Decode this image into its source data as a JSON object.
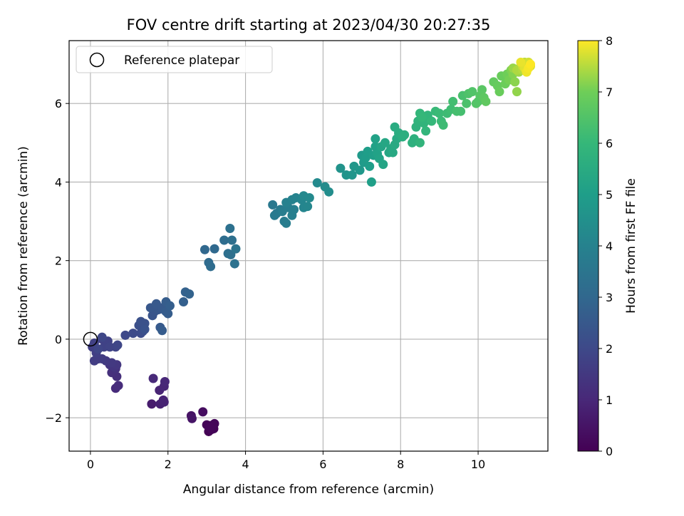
{
  "chart_data": {
    "type": "scatter",
    "title": "FOV centre drift starting at 2023/04/30 20:27:35",
    "xlabel": "Angular distance from reference (arcmin)",
    "ylabel": "Rotation from reference (arcmin)",
    "xlim": [
      -0.55,
      11.8
    ],
    "ylim": [
      -2.85,
      7.6
    ],
    "x_ticks": [
      0,
      2,
      4,
      6,
      8,
      10
    ],
    "y_ticks": [
      -2,
      0,
      2,
      4,
      6
    ],
    "x_tick_labels": [
      "0",
      "2",
      "4",
      "6",
      "8",
      "10"
    ],
    "y_tick_labels": [
      "−2",
      "0",
      "2",
      "4",
      "6"
    ],
    "grid": true,
    "legend": {
      "placement": "top-left",
      "label": "Reference platepar"
    },
    "reference_point": {
      "x": 0,
      "y": 0
    },
    "colorbar": {
      "label": "Hours from first FF file",
      "min": 0,
      "max": 8,
      "ticks": [
        0,
        1,
        2,
        3,
        4,
        5,
        6,
        7,
        8
      ],
      "tick_labels": [
        "0",
        "1",
        "2",
        "3",
        "4",
        "5",
        "6",
        "7",
        "8"
      ],
      "colormap": "viridis"
    },
    "points": [
      [
        3.05,
        -2.35,
        0.0
      ],
      [
        3.1,
        -2.2,
        0.03
      ],
      [
        3.18,
        -2.28,
        0.06
      ],
      [
        3.0,
        -2.18,
        0.08
      ],
      [
        3.12,
        -2.3,
        0.1
      ],
      [
        3.2,
        -2.15,
        0.12
      ],
      [
        3.08,
        -2.25,
        0.14
      ],
      [
        2.9,
        -1.85,
        0.3
      ],
      [
        2.6,
        -1.95,
        0.45
      ],
      [
        2.62,
        -2.02,
        0.5
      ],
      [
        1.58,
        -1.65,
        0.7
      ],
      [
        1.8,
        -1.65,
        0.8
      ],
      [
        1.88,
        -1.55,
        0.85
      ],
      [
        1.9,
        -1.6,
        0.87
      ],
      [
        1.78,
        -1.3,
        0.9
      ],
      [
        1.9,
        -1.2,
        0.95
      ],
      [
        1.92,
        -1.08,
        1.0
      ],
      [
        1.62,
        -1.0,
        1.05
      ],
      [
        0.65,
        -1.25,
        1.1
      ],
      [
        0.72,
        -1.18,
        1.15
      ],
      [
        0.68,
        -0.95,
        1.2
      ],
      [
        0.55,
        -0.85,
        1.25
      ],
      [
        0.65,
        -0.75,
        1.3
      ],
      [
        0.5,
        -0.65,
        1.35
      ],
      [
        0.6,
        -0.7,
        1.4
      ],
      [
        0.68,
        -0.65,
        1.45
      ],
      [
        0.55,
        -0.6,
        1.5
      ],
      [
        0.4,
        -0.55,
        1.55
      ],
      [
        0.3,
        -0.5,
        1.6
      ],
      [
        0.1,
        -0.55,
        1.65
      ],
      [
        0.2,
        -0.5,
        1.65
      ],
      [
        0.15,
        -0.35,
        1.7
      ],
      [
        0.05,
        -0.2,
        1.7
      ],
      [
        0.1,
        -0.1,
        1.75
      ],
      [
        0.3,
        0.0,
        1.75
      ],
      [
        0.45,
        -0.05,
        1.8
      ],
      [
        0.35,
        -0.2,
        1.8
      ],
      [
        0.5,
        -0.2,
        1.85
      ],
      [
        0.65,
        -0.2,
        1.85
      ],
      [
        0.7,
        -0.15,
        1.9
      ],
      [
        0.2,
        -0.25,
        1.9
      ],
      [
        0.3,
        0.05,
        1.95
      ],
      [
        0.9,
        0.1,
        2.0
      ],
      [
        1.1,
        0.15,
        2.05
      ],
      [
        1.3,
        0.15,
        2.1
      ],
      [
        1.35,
        0.2,
        2.15
      ],
      [
        1.25,
        0.35,
        2.2
      ],
      [
        1.3,
        0.45,
        2.25
      ],
      [
        1.4,
        0.4,
        2.25
      ],
      [
        1.4,
        0.25,
        2.3
      ],
      [
        1.6,
        0.6,
        2.35
      ],
      [
        1.65,
        0.7,
        2.4
      ],
      [
        1.75,
        0.75,
        2.45
      ],
      [
        1.55,
        0.8,
        2.45
      ],
      [
        1.7,
        0.9,
        2.5
      ],
      [
        1.85,
        0.8,
        2.5
      ],
      [
        1.9,
        0.75,
        2.55
      ],
      [
        1.8,
        0.3,
        2.55
      ],
      [
        1.85,
        0.22,
        2.6
      ],
      [
        1.95,
        0.7,
        2.6
      ],
      [
        2.0,
        0.65,
        2.65
      ],
      [
        1.95,
        0.95,
        2.65
      ],
      [
        2.05,
        0.85,
        2.7
      ],
      [
        2.4,
        0.95,
        2.75
      ],
      [
        2.45,
        1.2,
        2.8
      ],
      [
        2.55,
        1.15,
        2.85
      ],
      [
        2.95,
        2.28,
        3.0
      ],
      [
        3.2,
        2.3,
        3.05
      ],
      [
        3.05,
        1.95,
        3.1
      ],
      [
        3.1,
        1.85,
        3.15
      ],
      [
        3.45,
        2.52,
        3.2
      ],
      [
        3.55,
        2.18,
        3.25
      ],
      [
        3.62,
        2.15,
        3.3
      ],
      [
        3.65,
        2.52,
        3.3
      ],
      [
        3.6,
        2.82,
        3.35
      ],
      [
        3.72,
        1.92,
        3.4
      ],
      [
        3.75,
        2.3,
        3.45
      ],
      [
        4.7,
        3.42,
        3.6
      ],
      [
        4.8,
        3.2,
        3.65
      ],
      [
        4.75,
        3.15,
        3.7
      ],
      [
        4.9,
        3.3,
        3.7
      ],
      [
        5.0,
        3.0,
        3.75
      ],
      [
        5.05,
        2.95,
        3.8
      ],
      [
        4.95,
        3.25,
        3.8
      ],
      [
        5.1,
        3.35,
        3.85
      ],
      [
        5.2,
        3.15,
        3.9
      ],
      [
        5.25,
        3.3,
        3.9
      ],
      [
        5.05,
        3.48,
        3.95
      ],
      [
        5.2,
        3.55,
        4.0
      ],
      [
        5.3,
        3.6,
        4.05
      ],
      [
        5.45,
        3.55,
        4.1
      ],
      [
        5.5,
        3.35,
        4.1
      ],
      [
        5.6,
        3.38,
        4.15
      ],
      [
        5.5,
        3.65,
        4.2
      ],
      [
        5.65,
        3.6,
        4.25
      ],
      [
        5.85,
        3.98,
        4.3
      ],
      [
        6.05,
        3.88,
        4.35
      ],
      [
        6.15,
        3.75,
        4.4
      ],
      [
        6.45,
        4.35,
        4.6
      ],
      [
        6.6,
        4.18,
        4.65
      ],
      [
        6.75,
        4.18,
        4.7
      ],
      [
        6.8,
        4.4,
        4.75
      ],
      [
        6.95,
        4.3,
        4.8
      ],
      [
        7.0,
        4.68,
        4.85
      ],
      [
        7.05,
        4.5,
        4.9
      ],
      [
        7.1,
        4.62,
        4.95
      ],
      [
        7.15,
        4.78,
        5.0
      ],
      [
        7.2,
        4.4,
        5.0
      ],
      [
        7.25,
        4.0,
        5.05
      ],
      [
        7.3,
        4.68,
        5.05
      ],
      [
        7.35,
        4.9,
        5.1
      ],
      [
        7.4,
        4.72,
        5.15
      ],
      [
        7.35,
        5.1,
        5.15
      ],
      [
        7.45,
        4.6,
        5.2
      ],
      [
        7.5,
        4.9,
        5.25
      ],
      [
        7.55,
        4.45,
        5.25
      ],
      [
        7.6,
        5.0,
        5.3
      ],
      [
        7.7,
        4.75,
        5.3
      ],
      [
        7.75,
        4.85,
        5.35
      ],
      [
        7.8,
        4.75,
        5.4
      ],
      [
        7.85,
        4.95,
        5.45
      ],
      [
        7.9,
        5.1,
        5.45
      ],
      [
        7.85,
        5.4,
        5.5
      ],
      [
        7.95,
        5.25,
        5.55
      ],
      [
        8.05,
        5.15,
        5.6
      ],
      [
        8.1,
        5.2,
        5.65
      ],
      [
        8.3,
        5.0,
        5.7
      ],
      [
        8.35,
        5.1,
        5.7
      ],
      [
        8.4,
        5.4,
        5.75
      ],
      [
        8.45,
        5.55,
        5.8
      ],
      [
        8.5,
        5.0,
        5.85
      ],
      [
        8.6,
        5.5,
        5.85
      ],
      [
        8.65,
        5.3,
        5.9
      ],
      [
        8.7,
        5.7,
        5.9
      ],
      [
        8.5,
        5.75,
        5.95
      ],
      [
        8.55,
        5.65,
        6.0
      ],
      [
        8.8,
        5.55,
        6.0
      ],
      [
        8.9,
        5.8,
        6.05
      ],
      [
        9.0,
        5.75,
        6.1
      ],
      [
        9.05,
        5.55,
        6.1
      ],
      [
        9.1,
        5.45,
        6.15
      ],
      [
        9.2,
        5.75,
        6.15
      ],
      [
        9.3,
        5.85,
        6.2
      ],
      [
        9.35,
        6.05,
        6.25
      ],
      [
        9.45,
        5.8,
        6.3
      ],
      [
        9.55,
        5.8,
        6.3
      ],
      [
        9.6,
        6.2,
        6.35
      ],
      [
        9.7,
        6.0,
        6.4
      ],
      [
        9.75,
        6.25,
        6.45
      ],
      [
        9.85,
        6.3,
        6.5
      ],
      [
        9.95,
        6.0,
        6.55
      ],
      [
        10.0,
        6.05,
        6.55
      ],
      [
        10.05,
        6.2,
        6.6
      ],
      [
        10.1,
        6.35,
        6.65
      ],
      [
        10.15,
        6.15,
        6.7
      ],
      [
        10.2,
        6.05,
        6.75
      ],
      [
        10.4,
        6.55,
        6.8
      ],
      [
        10.5,
        6.45,
        6.85
      ],
      [
        10.55,
        6.3,
        6.9
      ],
      [
        10.6,
        6.7,
        6.9
      ],
      [
        10.7,
        6.5,
        6.95
      ],
      [
        10.75,
        6.75,
        7.0
      ],
      [
        10.8,
        6.6,
        7.05
      ],
      [
        10.85,
        6.85,
        7.1
      ],
      [
        10.9,
        6.75,
        7.15
      ],
      [
        10.95,
        6.55,
        7.2
      ],
      [
        11.0,
        6.3,
        7.25
      ],
      [
        10.9,
        6.9,
        7.3
      ],
      [
        11.05,
        6.8,
        7.35
      ],
      [
        11.1,
        6.95,
        7.4
      ],
      [
        11.0,
        6.85,
        7.45
      ],
      [
        11.15,
        6.85,
        7.5
      ],
      [
        11.2,
        7.05,
        7.55
      ],
      [
        11.25,
        7.0,
        7.6
      ],
      [
        11.15,
        6.95,
        7.65
      ],
      [
        11.3,
        7.05,
        7.7
      ],
      [
        11.35,
        6.95,
        7.75
      ],
      [
        11.2,
        6.9,
        7.8
      ],
      [
        11.1,
        7.05,
        7.85
      ],
      [
        11.25,
        6.8,
        7.9
      ],
      [
        11.3,
        6.9,
        7.95
      ],
      [
        11.35,
        7.0,
        8.0
      ]
    ]
  }
}
